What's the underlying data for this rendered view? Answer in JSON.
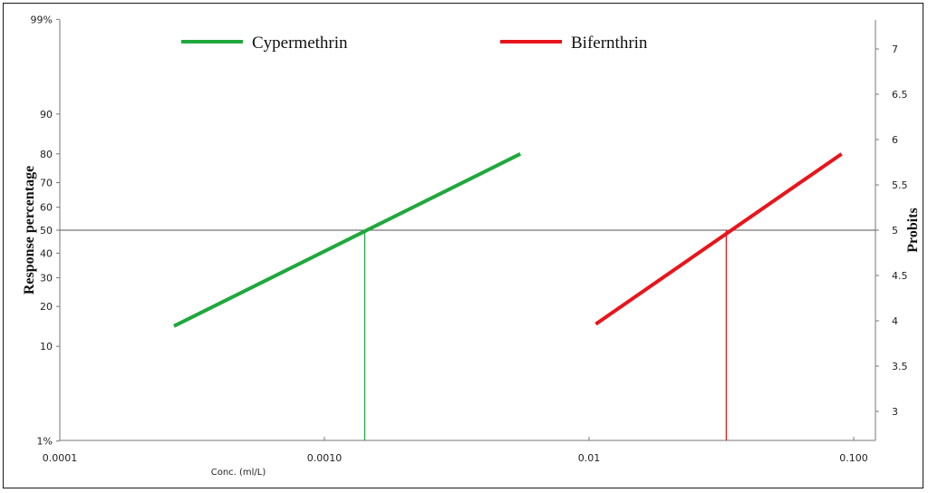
{
  "chart_data": {
    "type": "line",
    "title": "",
    "xlabel": "Conc. (ml/L)",
    "ylabel": "Response percentage",
    "y2label": "Probits",
    "x_scale": "log",
    "xlim": [
      0.0001,
      0.15
    ],
    "x_ticks": [
      {
        "value": 0.0001,
        "label": "0.0001"
      },
      {
        "value": 0.001,
        "label": "0.0010"
      },
      {
        "value": 0.01,
        "label": "0.01"
      },
      {
        "value": 0.1,
        "label": "0.100"
      }
    ],
    "y_scale": "probit",
    "y_ticks": [
      {
        "value": 1,
        "label": "1%"
      },
      {
        "value": 10,
        "label": "10"
      },
      {
        "value": 20,
        "label": "20"
      },
      {
        "value": 30,
        "label": "30"
      },
      {
        "value": 40,
        "label": "40"
      },
      {
        "value": 50,
        "label": "50"
      },
      {
        "value": 60,
        "label": "60"
      },
      {
        "value": 70,
        "label": "70"
      },
      {
        "value": 80,
        "label": "80"
      },
      {
        "value": 90,
        "label": "90"
      },
      {
        "value": 99,
        "label": "99%"
      }
    ],
    "y2_ticks": [
      {
        "value": 3,
        "label": "3"
      },
      {
        "value": 3.5,
        "label": "3.5"
      },
      {
        "value": 4,
        "label": "4"
      },
      {
        "value": 4.5,
        "label": "4.5"
      },
      {
        "value": 5,
        "label": "5"
      },
      {
        "value": 5.5,
        "label": "5.5"
      },
      {
        "value": 6,
        "label": "6"
      },
      {
        "value": 6.5,
        "label": "6.5"
      },
      {
        "value": 7,
        "label": "7"
      }
    ],
    "reference_line_y": 50,
    "series": [
      {
        "name": "Cypermethrin",
        "color": "#1fa83c",
        "points": [
          [
            0.00027,
            14.5
          ],
          [
            0.0055,
            80
          ]
        ],
        "lc50": 0.00142
      },
      {
        "name": "Bifernthrin",
        "color": "#e8151b",
        "points": [
          [
            0.0106,
            15
          ],
          [
            0.09,
            80
          ]
        ],
        "lc50": 0.033
      }
    ],
    "legend": "top",
    "grid": false
  }
}
